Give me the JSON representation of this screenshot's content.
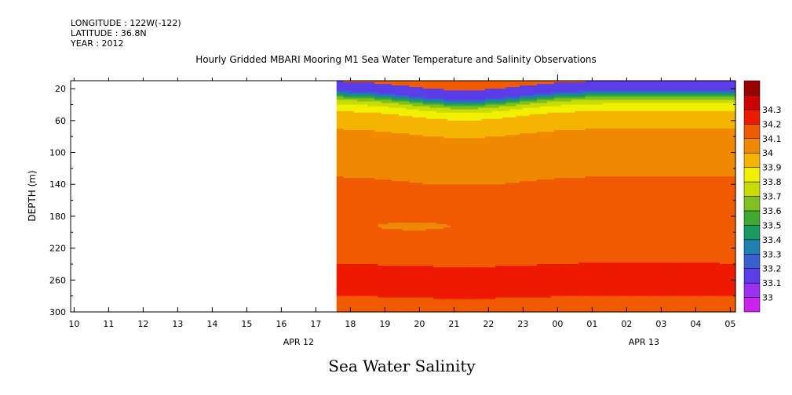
{
  "header": {
    "longitude": "LONGITUDE : 122W(-122)",
    "latitude": "LATITUDE : 36.8N",
    "year": "YEAR : 2012"
  },
  "title": "Hourly Gridded MBARI Mooring M1 Sea Water Temperature and Salinity Observations",
  "subtitle": "Sea Water Salinity",
  "chart_data": {
    "type": "heatmap",
    "ylabel": "DEPTH (m)",
    "y_reversed": true,
    "ylim": [
      300,
      10
    ],
    "y_ticks": [
      20,
      60,
      100,
      140,
      180,
      220,
      260,
      300
    ],
    "x_tick_labels": [
      "10",
      "11",
      "12",
      "13",
      "14",
      "15",
      "16",
      "17",
      "18",
      "19",
      "20",
      "21",
      "22",
      "23",
      "00",
      "01",
      "02",
      "03",
      "04",
      "05"
    ],
    "x_date_labels": [
      {
        "label": "APR 12",
        "at_hour": 16.5
      },
      {
        "label": "APR 13",
        "at_hour": 26.5
      }
    ],
    "data_start_hour": 17.6,
    "colorbar": {
      "levels": [
        33.0,
        33.1,
        33.2,
        33.3,
        33.4,
        33.5,
        33.6,
        33.7,
        33.8,
        33.9,
        34.0,
        34.1,
        34.2,
        34.3
      ],
      "labels": [
        "33",
        "33.1",
        "33.2",
        "33.3",
        "33.4",
        "33.5",
        "33.6",
        "33.7",
        "33.8",
        "33.9",
        "34",
        "34.1",
        "34.2",
        "34.3"
      ],
      "colors": [
        "#cc22ee",
        "#9b30f0",
        "#5a3ce8",
        "#3a5fd0",
        "#1f7fb0",
        "#1a9a60",
        "#40aa30",
        "#80c020",
        "#c8dc00",
        "#f0f000",
        "#f4b400",
        "#f08800",
        "#f05a00",
        "#ee1a00",
        "#cc0000",
        "#990000"
      ]
    }
  }
}
